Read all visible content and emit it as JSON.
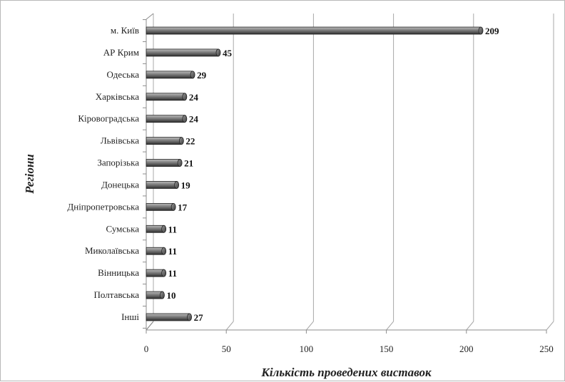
{
  "chart_data": {
    "type": "bar",
    "orientation": "horizontal",
    "categories": [
      "м. Київ",
      "АР Крим",
      "Одеська",
      "Харківська",
      "Кіровоградська",
      "Львівська",
      "Запорізька",
      "Донецька",
      "Дніпропетровська",
      "Сумська",
      "Миколаївська",
      "Вінницька",
      "Полтавська",
      "Інші"
    ],
    "values": [
      209,
      45,
      29,
      24,
      24,
      22,
      21,
      19,
      17,
      11,
      11,
      11,
      10,
      27
    ],
    "xlabel": "Кількість проведених виставок",
    "ylabel": "Регіони",
    "xlim": [
      0,
      250
    ],
    "xticks": [
      0,
      50,
      100,
      150,
      200,
      250
    ],
    "grid": true,
    "style": "3d-cylinder",
    "colors": {
      "bar": "#6e6e6e",
      "bar_highlight": "#bdbdbd",
      "bar_shadow": "#2e2e2e",
      "grid": "#a8a8a8"
    }
  }
}
